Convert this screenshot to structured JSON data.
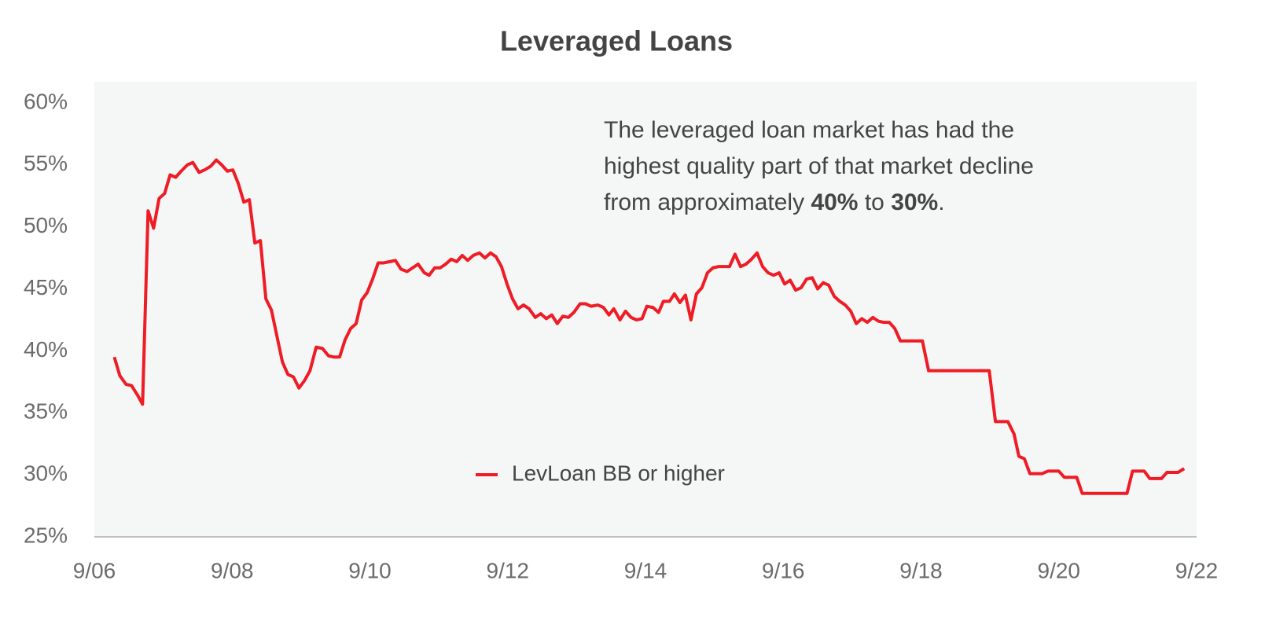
{
  "chart_data": {
    "type": "line",
    "title": "Leveraged Loans",
    "annotation_lines": [
      [
        {
          "text": "The leveraged loan market has had the",
          "bold": false
        }
      ],
      [
        {
          "text": "highest quality part of that market decline",
          "bold": false
        }
      ],
      [
        {
          "text": "from approximately ",
          "bold": false
        },
        {
          "text": "40%",
          "bold": true
        },
        {
          "text": " to ",
          "bold": false
        },
        {
          "text": "30%",
          "bold": true
        },
        {
          "text": ".",
          "bold": false
        }
      ]
    ],
    "xlim": [
      2006.67,
      2022.67
    ],
    "xticks": [
      {
        "value": 2006.67,
        "label": "9/06"
      },
      {
        "value": 2008.67,
        "label": "9/08"
      },
      {
        "value": 2010.67,
        "label": "9/10"
      },
      {
        "value": 2012.67,
        "label": "9/12"
      },
      {
        "value": 2014.67,
        "label": "9/14"
      },
      {
        "value": 2016.67,
        "label": "9/16"
      },
      {
        "value": 2018.67,
        "label": "9/18"
      },
      {
        "value": 2020.67,
        "label": "9/20"
      },
      {
        "value": 2022.67,
        "label": "9/22"
      }
    ],
    "ylim": [
      25,
      60
    ],
    "yticks": [
      {
        "value": 25,
        "label": "25%"
      },
      {
        "value": 30,
        "label": "30%"
      },
      {
        "value": 35,
        "label": "35%"
      },
      {
        "value": 40,
        "label": "40%"
      },
      {
        "value": 45,
        "label": "45%"
      },
      {
        "value": 50,
        "label": "50%"
      },
      {
        "value": 55,
        "label": "55%"
      },
      {
        "value": 60,
        "label": "60%"
      }
    ],
    "grid": false,
    "legend_position": "lower center",
    "x": [
      2006.96,
      2007.04,
      2007.13,
      2007.21,
      2007.3,
      2007.37,
      2007.45,
      2007.53,
      2007.61,
      2007.69,
      2007.77,
      2007.85,
      2007.93,
      2008.02,
      2008.1,
      2008.19,
      2008.27,
      2008.36,
      2008.44,
      2008.52,
      2008.6,
      2008.68,
      2008.76,
      2008.84,
      2008.92,
      2009.0,
      2009.08,
      2009.16,
      2009.24,
      2009.32,
      2009.4,
      2009.48,
      2009.56,
      2009.64,
      2009.72,
      2009.8,
      2009.89,
      2009.98,
      2010.07,
      2010.15,
      2010.23,
      2010.31,
      2010.39,
      2010.47,
      2010.55,
      2010.63,
      2010.71,
      2010.79,
      2010.87,
      2010.96,
      2011.04,
      2011.12,
      2011.21,
      2011.29,
      2011.37,
      2011.46,
      2011.53,
      2011.61,
      2011.69,
      2011.77,
      2011.85,
      2011.93,
      2012.01,
      2012.09,
      2012.17,
      2012.26,
      2012.34,
      2012.42,
      2012.5,
      2012.58,
      2012.66,
      2012.74,
      2012.82,
      2012.9,
      2012.98,
      2013.07,
      2013.15,
      2013.23,
      2013.31,
      2013.39,
      2013.47,
      2013.55,
      2013.63,
      2013.72,
      2013.8,
      2013.88,
      2013.98,
      2014.06,
      2014.14,
      2014.21,
      2014.3,
      2014.38,
      2014.46,
      2014.54,
      2014.62,
      2014.69,
      2014.78,
      2014.86,
      2014.93,
      2015.02,
      2015.09,
      2015.17,
      2015.25,
      2015.33,
      2015.41,
      2015.49,
      2015.57,
      2015.65,
      2015.73,
      2015.81,
      2015.89,
      2015.97,
      2016.05,
      2016.13,
      2016.21,
      2016.29,
      2016.37,
      2016.45,
      2016.53,
      2016.61,
      2016.69,
      2016.77,
      2016.85,
      2016.93,
      2017.01,
      2017.09,
      2017.17,
      2017.25,
      2017.33,
      2017.41,
      2017.49,
      2017.57,
      2017.65,
      2017.73,
      2017.81,
      2017.89,
      2017.97,
      2018.05,
      2018.13,
      2018.21,
      2018.29,
      2018.37,
      2018.45,
      2018.53,
      2018.61,
      2018.69,
      2018.78,
      2019.66,
      2019.75,
      2019.93,
      2020.02,
      2020.09,
      2020.17,
      2020.25,
      2020.43,
      2020.51,
      2020.67,
      2020.75,
      2020.93,
      2021.01,
      2021.66,
      2021.74,
      2021.91,
      2021.99,
      2022.16,
      2022.24,
      2022.4,
      2022.49
    ],
    "series": [
      {
        "name": "LevLoan BB or higher",
        "color": "#ee1c25",
        "values": [
          39.5,
          38.0,
          37.3,
          37.2,
          36.4,
          35.7,
          51.3,
          49.9,
          52.3,
          52.7,
          54.2,
          54.0,
          54.5,
          55.0,
          55.2,
          54.4,
          54.6,
          54.9,
          55.4,
          55.0,
          54.5,
          54.6,
          53.5,
          52.0,
          52.2,
          48.7,
          48.9,
          44.2,
          43.3,
          41.2,
          39.1,
          38.1,
          37.9,
          37.0,
          37.6,
          38.4,
          40.3,
          40.2,
          39.6,
          39.5,
          39.5,
          40.9,
          41.8,
          42.2,
          44.1,
          44.7,
          45.8,
          47.1,
          47.1,
          47.2,
          47.3,
          46.6,
          46.4,
          46.7,
          47.0,
          46.3,
          46.1,
          46.7,
          46.7,
          47.0,
          47.4,
          47.2,
          47.7,
          47.3,
          47.7,
          47.9,
          47.5,
          47.9,
          47.6,
          46.8,
          45.4,
          44.2,
          43.4,
          43.7,
          43.4,
          42.7,
          43.0,
          42.6,
          42.9,
          42.2,
          42.8,
          42.7,
          43.1,
          43.8,
          43.8,
          43.6,
          43.7,
          43.5,
          42.9,
          43.4,
          42.5,
          43.2,
          42.7,
          42.5,
          42.6,
          43.6,
          43.5,
          43.1,
          44.0,
          44.0,
          44.6,
          43.9,
          44.5,
          42.5,
          44.6,
          45.1,
          46.3,
          46.7,
          46.8,
          46.8,
          46.8,
          47.8,
          46.8,
          47.0,
          47.4,
          47.9,
          46.8,
          46.3,
          46.1,
          46.3,
          45.4,
          45.7,
          44.9,
          45.1,
          45.8,
          45.9,
          45.0,
          45.5,
          45.3,
          44.4,
          44.0,
          43.7,
          43.2,
          42.2,
          42.6,
          42.3,
          42.7,
          42.4,
          42.3,
          42.3,
          41.8,
          40.8,
          40.8,
          40.8,
          40.8,
          40.8,
          38.4,
          38.4,
          34.3,
          34.3,
          33.3,
          31.5,
          31.3,
          30.1,
          30.1,
          30.3,
          30.3,
          29.8,
          29.8,
          28.5,
          28.5,
          30.3,
          30.3,
          29.7,
          29.7,
          30.2,
          30.2,
          30.5
        ]
      }
    ]
  }
}
